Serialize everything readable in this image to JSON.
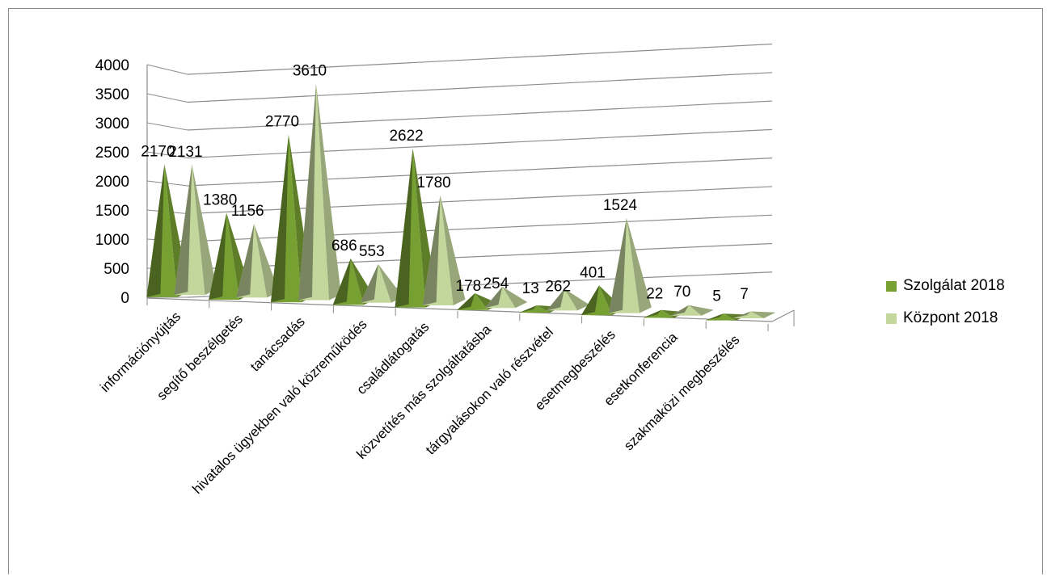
{
  "chart_data": {
    "type": "bar",
    "style": "3d-pyramid",
    "title": "",
    "xlabel": "",
    "ylabel": "",
    "ylim": [
      0,
      4000
    ],
    "yticks": [
      0,
      500,
      1000,
      1500,
      2000,
      2500,
      3000,
      3500,
      4000
    ],
    "grid": true,
    "legend_position": "right",
    "categories": [
      "információnyújtás",
      "segítő beszélgetés",
      "tanácsadás",
      "hivatalos ügyekben való közreműködés",
      "családlátogatás",
      "közvetítés más szolgáltatásba",
      "tárgyalásokon való részvétel",
      "esetmegbeszélés",
      "esetkonferencia",
      "szakmaközi megbeszélés"
    ],
    "series": [
      {
        "name": "Szolgálat 2018",
        "color": "#77a033",
        "values": [
          2170,
          1380,
          2770,
          686,
          2622,
          178,
          13,
          401,
          22,
          5
        ]
      },
      {
        "name": "Központ 2018",
        "color": "#c3d69b",
        "values": [
          2131,
          1156,
          3610,
          553,
          1780,
          254,
          262,
          1524,
          70,
          7
        ]
      }
    ]
  }
}
